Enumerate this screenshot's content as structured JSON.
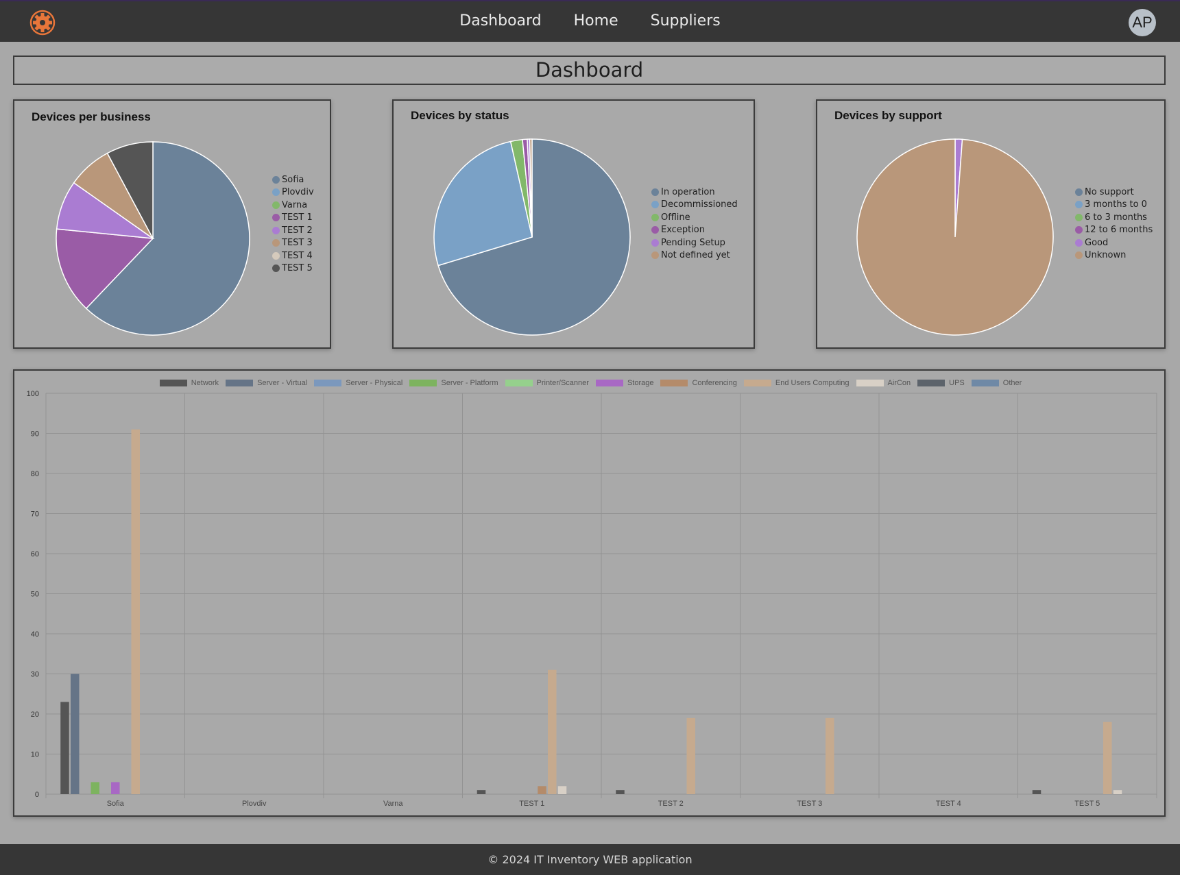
{
  "navbar": {
    "logo_icon": "gear-icon",
    "links": [
      "Dashboard",
      "Home",
      "Suppliers"
    ],
    "avatar": "AP"
  },
  "page_title": "Dashboard",
  "colors": {
    "slate": "#6b8299",
    "lightblue": "#7aa1c6",
    "green": "#82b86a",
    "purple": "#9a5ca6",
    "lilac": "#aa7cd2",
    "tan": "#b9977a",
    "cream": "#d5cabc",
    "charcoal": "#555555"
  },
  "chart_data": [
    {
      "type": "pie",
      "title": "Devices per business",
      "labels": [
        "Sofia",
        "Plovdiv",
        "Varna",
        "TEST 1",
        "TEST 2",
        "TEST 3",
        "TEST 4",
        "TEST 5"
      ],
      "values": [
        159,
        0,
        0,
        37,
        21,
        19,
        0,
        20
      ],
      "colors": [
        "#6b8299",
        "#7aa1c6",
        "#82b86a",
        "#9a5ca6",
        "#aa7cd2",
        "#b9977a",
        "#d5cabc",
        "#555555"
      ],
      "legend": "right"
    },
    {
      "type": "pie",
      "title": "Devices by status",
      "labels": [
        "In operation",
        "Decommissioned",
        "Offline",
        "Exception",
        "Pending Setup",
        "Not defined yet"
      ],
      "values": [
        180,
        67,
        5,
        2,
        1,
        1
      ],
      "colors": [
        "#6b8299",
        "#7aa1c6",
        "#82b86a",
        "#9a5ca6",
        "#aa7cd2",
        "#b9977a"
      ],
      "legend": "right"
    },
    {
      "type": "pie",
      "title": "Devices by support",
      "labels": [
        "No support",
        "3 months to 0",
        "6 to 3 months",
        "12 to 6 months",
        "Good",
        "Unknown"
      ],
      "values": [
        0,
        0,
        0,
        0,
        3,
        253
      ],
      "colors": [
        "#6b8299",
        "#7aa1c6",
        "#82b86a",
        "#9a5ca6",
        "#aa7cd2",
        "#b9977a"
      ],
      "legend": "right"
    },
    {
      "type": "bar",
      "categories": [
        "Sofia",
        "Plovdiv",
        "Varna",
        "TEST 1",
        "TEST 2",
        "TEST 3",
        "TEST 4",
        "TEST 5"
      ],
      "ylim": [
        0,
        100
      ],
      "yticks": [
        0,
        10,
        20,
        30,
        40,
        50,
        60,
        70,
        80,
        90,
        100
      ],
      "grid": true,
      "legend": "top",
      "series": [
        {
          "name": "Network",
          "color": "#555555",
          "values": [
            23,
            0,
            0,
            1,
            1,
            0,
            0,
            1
          ]
        },
        {
          "name": "Server - Virtual",
          "color": "#657487",
          "values": [
            30,
            0,
            0,
            0,
            0,
            0,
            0,
            0
          ]
        },
        {
          "name": "Server - Physical",
          "color": "#7b98bd",
          "values": [
            0,
            0,
            0,
            0,
            0,
            0,
            0,
            0
          ]
        },
        {
          "name": "Server - Platform",
          "color": "#7db35f",
          "values": [
            3,
            0,
            0,
            0,
            0,
            0,
            0,
            0
          ]
        },
        {
          "name": "Printer/Scanner",
          "color": "#95d08c",
          "values": [
            0,
            0,
            0,
            0,
            0,
            0,
            0,
            0
          ]
        },
        {
          "name": "Storage",
          "color": "#a868c4",
          "values": [
            3,
            0,
            0,
            0,
            0,
            0,
            0,
            0
          ]
        },
        {
          "name": "Conferencing",
          "color": "#b48b6a",
          "values": [
            0,
            0,
            0,
            2,
            0,
            0,
            0,
            0
          ]
        },
        {
          "name": "End Users Computing",
          "color": "#c6aa8e",
          "values": [
            91,
            0,
            0,
            31,
            19,
            19,
            0,
            18
          ]
        },
        {
          "name": "AirCon",
          "color": "#d8d0c6",
          "values": [
            0,
            0,
            0,
            2,
            0,
            0,
            0,
            1
          ]
        },
        {
          "name": "UPS",
          "color": "#5c636b",
          "values": [
            0,
            0,
            0,
            0,
            0,
            0,
            0,
            0
          ]
        },
        {
          "name": "Other",
          "color": "#6f89a6",
          "values": [
            0,
            0,
            0,
            0,
            0,
            0,
            0,
            0
          ]
        }
      ]
    }
  ],
  "footer": "© 2024 IT Inventory WEB application"
}
